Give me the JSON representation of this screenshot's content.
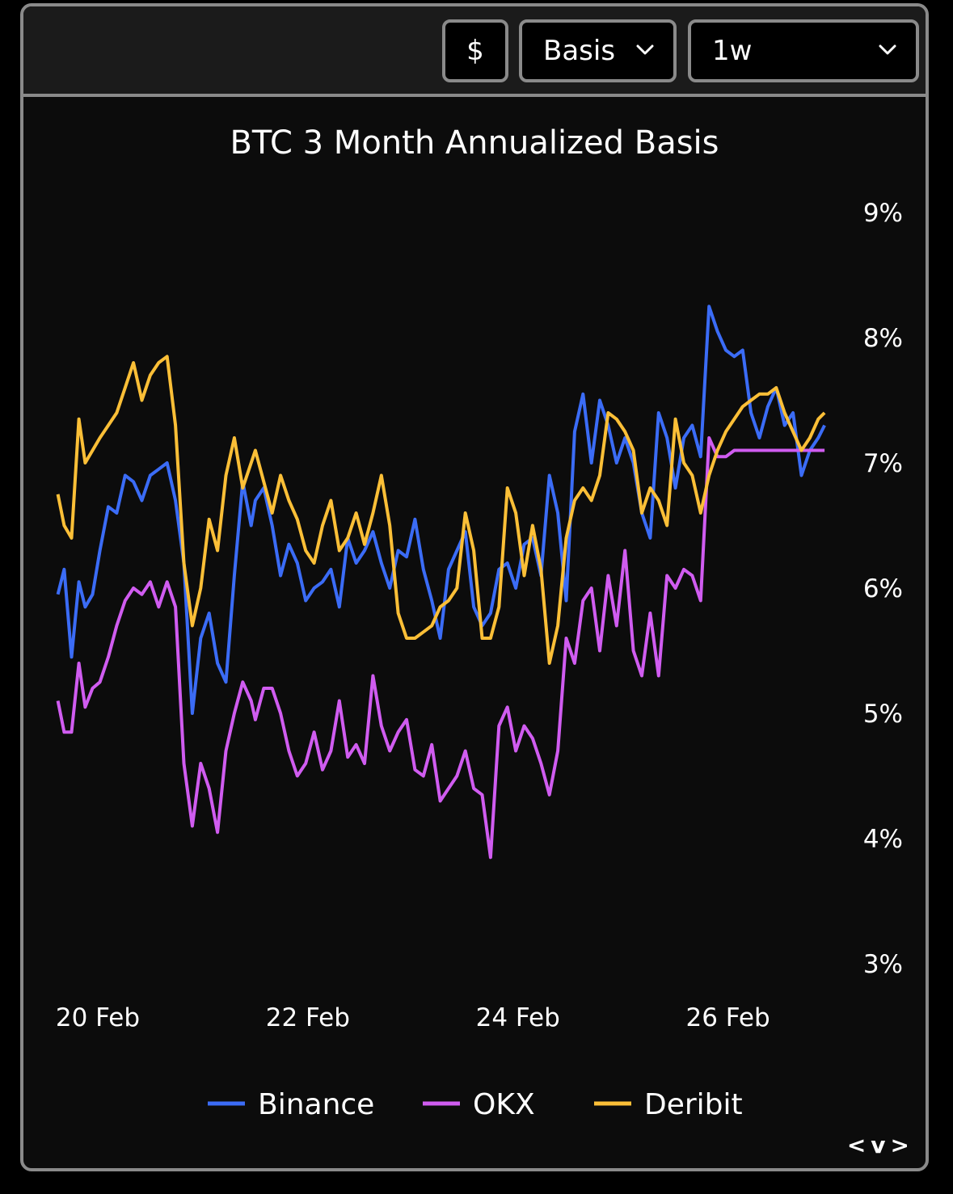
{
  "toolbar": {
    "currency_label": "$",
    "metric_label": "Basis",
    "period_label": "1w"
  },
  "nav": {
    "arrows": "<v>"
  },
  "colors": {
    "binance": "#3b6cf6",
    "okx": "#d05cf0",
    "deribit": "#fbbf37",
    "background": "#0c0c0c"
  },
  "chart_data": {
    "type": "line",
    "title": "BTC 3 Month Annualized Basis",
    "xlabel": "",
    "ylabel": "",
    "ylim": [
      3,
      9
    ],
    "y_ticks": [
      "9%",
      "8%",
      "7%",
      "6%",
      "5%",
      "4%",
      "3%"
    ],
    "x_range": [
      19.6,
      26.95
    ],
    "x_ticks": [
      {
        "label": "20 Feb",
        "value": 20
      },
      {
        "label": "22 Feb",
        "value": 22
      },
      {
        "label": "24 Feb",
        "value": 24
      },
      {
        "label": "26 Feb",
        "value": 26
      }
    ],
    "legend_position": "bottom-center",
    "series": [
      {
        "name": "Binance",
        "color": "#3b6cf6",
        "x": [
          19.62,
          19.68,
          19.75,
          19.82,
          19.88,
          19.95,
          20.02,
          20.1,
          20.18,
          20.26,
          20.34,
          20.42,
          20.5,
          20.58,
          20.66,
          20.74,
          20.82,
          20.9,
          20.98,
          21.06,
          21.14,
          21.22,
          21.3,
          21.38,
          21.46,
          21.5,
          21.58,
          21.66,
          21.74,
          21.82,
          21.9,
          21.98,
          22.06,
          22.14,
          22.22,
          22.3,
          22.38,
          22.46,
          22.54,
          22.62,
          22.7,
          22.78,
          22.86,
          22.94,
          23.02,
          23.1,
          23.18,
          23.26,
          23.34,
          23.42,
          23.5,
          23.58,
          23.66,
          23.74,
          23.82,
          23.9,
          23.98,
          24.06,
          24.14,
          24.22,
          24.3,
          24.38,
          24.46,
          24.54,
          24.62,
          24.7,
          24.78,
          24.86,
          24.94,
          25.02,
          25.1,
          25.18,
          25.26,
          25.34,
          25.42,
          25.5,
          25.58,
          25.66,
          25.74,
          25.82,
          25.9,
          25.98,
          26.06,
          26.14,
          26.22,
          26.3,
          26.38,
          26.46,
          26.54,
          26.62,
          26.7,
          26.78,
          26.86,
          26.92
        ],
        "y": [
          5.95,
          6.15,
          5.45,
          6.05,
          5.85,
          5.95,
          6.3,
          6.65,
          6.6,
          6.9,
          6.85,
          6.7,
          6.9,
          6.95,
          7.0,
          6.7,
          6.2,
          5.0,
          5.6,
          5.8,
          5.4,
          5.25,
          6.1,
          6.85,
          6.5,
          6.7,
          6.8,
          6.5,
          6.1,
          6.35,
          6.2,
          5.9,
          6.0,
          6.05,
          6.15,
          5.85,
          6.4,
          6.2,
          6.3,
          6.45,
          6.2,
          6.0,
          6.3,
          6.25,
          6.55,
          6.15,
          5.9,
          5.6,
          6.15,
          6.3,
          6.45,
          5.85,
          5.7,
          5.8,
          6.15,
          6.2,
          6.0,
          6.35,
          6.4,
          6.1,
          6.9,
          6.6,
          5.9,
          7.25,
          7.55,
          7.0,
          7.5,
          7.3,
          7.0,
          7.2,
          7.0,
          6.6,
          6.4,
          7.4,
          7.2,
          6.8,
          7.2,
          7.3,
          7.05,
          8.25,
          8.05,
          7.9,
          7.85,
          7.9,
          7.4,
          7.2,
          7.45,
          7.6,
          7.3,
          7.4,
          6.9,
          7.1,
          7.2,
          7.3
        ]
      },
      {
        "name": "OKX",
        "color": "#d05cf0",
        "x": [
          19.62,
          19.68,
          19.75,
          19.82,
          19.88,
          19.95,
          20.02,
          20.1,
          20.18,
          20.26,
          20.34,
          20.42,
          20.5,
          20.58,
          20.66,
          20.74,
          20.82,
          20.9,
          20.98,
          21.06,
          21.14,
          21.22,
          21.3,
          21.38,
          21.46,
          21.5,
          21.58,
          21.66,
          21.74,
          21.82,
          21.9,
          21.98,
          22.06,
          22.14,
          22.22,
          22.3,
          22.38,
          22.46,
          22.54,
          22.62,
          22.7,
          22.78,
          22.86,
          22.94,
          23.02,
          23.1,
          23.18,
          23.26,
          23.34,
          23.42,
          23.5,
          23.58,
          23.66,
          23.74,
          23.82,
          23.9,
          23.98,
          24.06,
          24.14,
          24.22,
          24.3,
          24.38,
          24.46,
          24.54,
          24.62,
          24.7,
          24.78,
          24.86,
          24.94,
          25.02,
          25.1,
          25.18,
          25.26,
          25.34,
          25.42,
          25.5,
          25.58,
          25.66,
          25.74,
          25.82,
          25.9,
          25.98,
          26.06,
          26.14,
          26.22,
          26.3,
          26.38,
          26.46,
          26.54,
          26.62,
          26.7,
          26.78,
          26.86,
          26.92
        ],
        "y": [
          5.1,
          4.85,
          4.85,
          5.4,
          5.05,
          5.2,
          5.25,
          5.45,
          5.7,
          5.9,
          6.0,
          5.95,
          6.05,
          5.85,
          6.05,
          5.85,
          4.6,
          4.1,
          4.6,
          4.4,
          4.05,
          4.7,
          5.0,
          5.25,
          5.1,
          4.95,
          5.2,
          5.2,
          5.0,
          4.7,
          4.5,
          4.6,
          4.85,
          4.55,
          4.7,
          5.1,
          4.65,
          4.75,
          4.6,
          5.3,
          4.9,
          4.7,
          4.85,
          4.95,
          4.55,
          4.5,
          4.75,
          4.3,
          4.4,
          4.5,
          4.7,
          4.4,
          4.35,
          3.85,
          4.9,
          5.05,
          4.7,
          4.9,
          4.8,
          4.6,
          4.35,
          4.7,
          5.6,
          5.4,
          5.9,
          6.0,
          5.5,
          6.1,
          5.7,
          6.3,
          5.5,
          5.3,
          5.8,
          5.3,
          6.1,
          6.0,
          6.15,
          6.1,
          5.9,
          7.2,
          7.05,
          7.05,
          7.1,
          7.1,
          7.1,
          7.1,
          7.1,
          7.1,
          7.1,
          7.1,
          7.1,
          7.1,
          7.1,
          7.1
        ]
      },
      {
        "name": "Deribit",
        "color": "#fbbf37",
        "x": [
          19.62,
          19.68,
          19.75,
          19.82,
          19.88,
          19.95,
          20.02,
          20.1,
          20.18,
          20.26,
          20.34,
          20.42,
          20.5,
          20.58,
          20.66,
          20.74,
          20.82,
          20.9,
          20.98,
          21.06,
          21.14,
          21.22,
          21.3,
          21.38,
          21.46,
          21.5,
          21.58,
          21.66,
          21.74,
          21.82,
          21.9,
          21.98,
          22.06,
          22.14,
          22.22,
          22.3,
          22.38,
          22.46,
          22.54,
          22.62,
          22.7,
          22.78,
          22.86,
          22.94,
          23.02,
          23.1,
          23.18,
          23.26,
          23.34,
          23.42,
          23.5,
          23.58,
          23.66,
          23.74,
          23.82,
          23.9,
          23.98,
          24.06,
          24.14,
          24.22,
          24.3,
          24.38,
          24.46,
          24.54,
          24.62,
          24.7,
          24.78,
          24.86,
          24.94,
          25.02,
          25.1,
          25.18,
          25.26,
          25.34,
          25.42,
          25.5,
          25.58,
          25.66,
          25.74,
          25.82,
          25.9,
          25.98,
          26.06,
          26.14,
          26.22,
          26.3,
          26.38,
          26.46,
          26.54,
          26.62,
          26.7,
          26.78,
          26.86,
          26.92
        ],
        "y": [
          6.75,
          6.5,
          6.4,
          7.35,
          7.0,
          7.1,
          7.2,
          7.3,
          7.4,
          7.6,
          7.8,
          7.5,
          7.7,
          7.8,
          7.85,
          7.3,
          6.2,
          5.7,
          6.0,
          6.55,
          6.3,
          6.9,
          7.2,
          6.8,
          7.0,
          7.1,
          6.85,
          6.6,
          6.9,
          6.7,
          6.55,
          6.3,
          6.2,
          6.5,
          6.7,
          6.3,
          6.4,
          6.6,
          6.35,
          6.6,
          6.9,
          6.5,
          5.8,
          5.6,
          5.6,
          5.65,
          5.7,
          5.85,
          5.9,
          6.0,
          6.6,
          6.3,
          5.6,
          5.6,
          5.85,
          6.8,
          6.6,
          6.1,
          6.5,
          6.15,
          5.4,
          5.7,
          6.4,
          6.7,
          6.8,
          6.7,
          6.9,
          7.4,
          7.35,
          7.25,
          7.1,
          6.6,
          6.8,
          6.7,
          6.5,
          7.35,
          7.0,
          6.9,
          6.6,
          6.9,
          7.1,
          7.25,
          7.35,
          7.45,
          7.5,
          7.55,
          7.55,
          7.6,
          7.4,
          7.25,
          7.1,
          7.2,
          7.35,
          7.4
        ]
      }
    ]
  }
}
